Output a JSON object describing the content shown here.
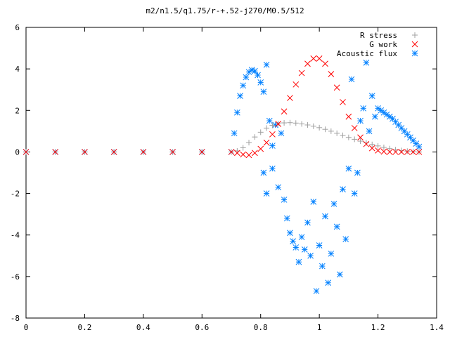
{
  "chart_data": {
    "type": "scatter",
    "title": "m2/n1.5/q1.75/r-+.52-j270/M0.5/512",
    "xlabel": "",
    "ylabel": "",
    "xlim": [
      0,
      1.4
    ],
    "ylim": [
      -8,
      6
    ],
    "x_ticks": [
      "0",
      "0.2",
      "0.4",
      "0.6",
      "0.8",
      "1",
      "1.2",
      "1.4"
    ],
    "y_ticks": [
      "6",
      "4",
      "2",
      "0",
      "-2",
      "-4",
      "-6",
      "-8"
    ],
    "x_tick_values": [
      0,
      0.2,
      0.4,
      0.6,
      0.8,
      1.0,
      1.2,
      1.4
    ],
    "y_tick_values": [
      6,
      4,
      2,
      0,
      -2,
      -4,
      -6,
      -8
    ],
    "grid": false,
    "legend_position": "top-right",
    "series": [
      {
        "name": "R stress",
        "marker": "plus",
        "color": "#a0a0a0",
        "x": [
          0.0,
          0.1,
          0.2,
          0.3,
          0.4,
          0.5,
          0.6,
          0.7,
          0.72,
          0.74,
          0.76,
          0.78,
          0.8,
          0.82,
          0.84,
          0.86,
          0.88,
          0.9,
          0.92,
          0.94,
          0.96,
          0.98,
          1.0,
          1.02,
          1.04,
          1.06,
          1.08,
          1.1,
          1.12,
          1.14,
          1.16,
          1.18,
          1.2,
          1.22,
          1.24,
          1.26,
          1.28,
          1.3,
          1.32,
          1.34
        ],
        "y": [
          0,
          0,
          0,
          0,
          0,
          0,
          0,
          0,
          0.05,
          0.2,
          0.45,
          0.72,
          0.95,
          1.15,
          1.28,
          1.36,
          1.4,
          1.41,
          1.39,
          1.35,
          1.3,
          1.24,
          1.17,
          1.09,
          1.0,
          0.9,
          0.8,
          0.7,
          0.61,
          0.52,
          0.44,
          0.36,
          0.29,
          0.22,
          0.16,
          0.11,
          0.07,
          0.04,
          0.02,
          0.0
        ]
      },
      {
        "name": "G work",
        "marker": "cross",
        "color": "#ff0000",
        "x": [
          0.0,
          0.1,
          0.2,
          0.3,
          0.4,
          0.5,
          0.6,
          0.7,
          0.72,
          0.74,
          0.76,
          0.78,
          0.8,
          0.82,
          0.84,
          0.86,
          0.88,
          0.9,
          0.92,
          0.94,
          0.96,
          0.98,
          1.0,
          1.02,
          1.04,
          1.06,
          1.08,
          1.1,
          1.12,
          1.14,
          1.16,
          1.18,
          1.2,
          1.22,
          1.24,
          1.26,
          1.28,
          1.3,
          1.32,
          1.34
        ],
        "y": [
          0,
          0,
          0,
          0,
          0,
          0,
          0,
          0,
          -0.05,
          -0.12,
          -0.15,
          -0.05,
          0.15,
          0.45,
          0.85,
          1.35,
          1.95,
          2.6,
          3.25,
          3.8,
          4.25,
          4.5,
          4.5,
          4.25,
          3.75,
          3.1,
          2.4,
          1.7,
          1.15,
          0.7,
          0.38,
          0.18,
          0.07,
          0.02,
          0.0,
          0.0,
          0.0,
          0.0,
          0.0,
          0.0
        ]
      },
      {
        "name": "Acoustic flux",
        "marker": "star",
        "color": "#0080ff",
        "x": [
          0.0,
          0.1,
          0.2,
          0.3,
          0.4,
          0.5,
          0.6,
          0.7,
          0.71,
          0.72,
          0.73,
          0.74,
          0.75,
          0.76,
          0.77,
          0.78,
          0.79,
          0.8,
          0.81,
          0.82,
          0.83,
          0.84,
          0.81,
          0.82,
          0.84,
          0.85,
          0.86,
          0.87,
          0.88,
          0.89,
          0.9,
          0.91,
          0.92,
          0.93,
          0.94,
          0.95,
          0.96,
          0.97,
          0.98,
          0.99,
          1.0,
          1.01,
          1.02,
          1.03,
          1.04,
          1.05,
          1.06,
          1.07,
          1.08,
          1.09,
          1.1,
          1.11,
          1.12,
          1.13,
          1.14,
          1.15,
          1.16,
          1.17,
          1.18,
          1.19,
          1.2,
          1.21,
          1.22,
          1.23,
          1.24,
          1.25,
          1.26,
          1.27,
          1.28,
          1.29,
          1.3,
          1.31,
          1.32,
          1.33,
          1.34
        ],
        "y": [
          0,
          0,
          0,
          0,
          0,
          0,
          0,
          0,
          0.9,
          1.9,
          2.7,
          3.2,
          3.6,
          3.85,
          3.95,
          3.9,
          3.7,
          3.35,
          2.9,
          4.2,
          1.5,
          0.3,
          -1.0,
          -2.0,
          -0.8,
          1.3,
          -1.7,
          0.9,
          -2.3,
          -3.2,
          -3.9,
          -4.3,
          -4.6,
          -5.3,
          -4.1,
          -4.7,
          -3.4,
          -5.0,
          -2.4,
          -6.7,
          -4.5,
          -5.5,
          -3.1,
          -6.3,
          -4.9,
          -2.5,
          -3.6,
          -5.9,
          -1.8,
          -4.2,
          -0.8,
          3.5,
          -2.0,
          -1.0,
          1.5,
          2.1,
          4.3,
          1.0,
          2.7,
          1.7,
          2.1,
          2.0,
          1.9,
          1.8,
          1.7,
          1.6,
          1.45,
          1.3,
          1.15,
          1.0,
          0.85,
          0.7,
          0.55,
          0.4,
          0.25
        ]
      }
    ]
  }
}
